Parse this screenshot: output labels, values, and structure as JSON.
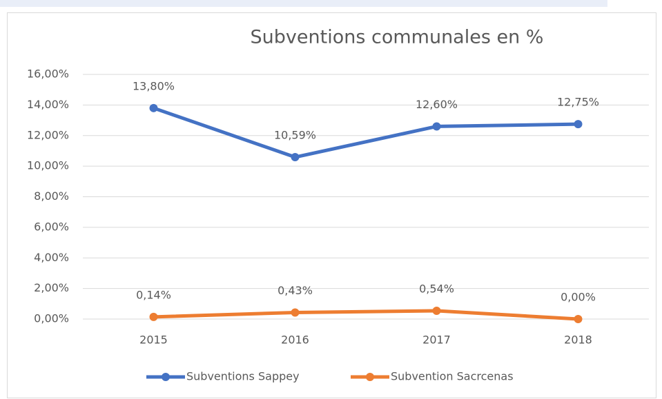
{
  "chart_data": {
    "type": "line",
    "title": "Subventions communales en %",
    "categories": [
      "2015",
      "2016",
      "2017",
      "2018"
    ],
    "series": [
      {
        "name": "Subventions Sappey",
        "color": "#4472c4",
        "values": [
          13.8,
          10.59,
          12.6,
          12.75
        ],
        "value_labels": [
          "13,80%",
          "10,59%",
          "12,60%",
          "12,75%"
        ]
      },
      {
        "name": "Subvention Sacrcenas",
        "color": "#ed7d31",
        "values": [
          0.14,
          0.43,
          0.54,
          0
        ],
        "value_labels": [
          "0,14%",
          "0,43%",
          "0,54%",
          "0,00%"
        ]
      }
    ],
    "ylim": [
      0,
      16
    ],
    "yticks": [
      {
        "value": 0,
        "label": "0,00%"
      },
      {
        "value": 2,
        "label": "2,00%"
      },
      {
        "value": 4,
        "label": "4,00%"
      },
      {
        "value": 6,
        "label": "6,00%"
      },
      {
        "value": 8,
        "label": "8,00%"
      },
      {
        "value": 10,
        "label": "10,00%"
      },
      {
        "value": 12,
        "label": "12,00%"
      },
      {
        "value": 14,
        "label": "14,00%"
      },
      {
        "value": 16,
        "label": "16,00%"
      }
    ],
    "grid": true,
    "legend": "bottom"
  }
}
